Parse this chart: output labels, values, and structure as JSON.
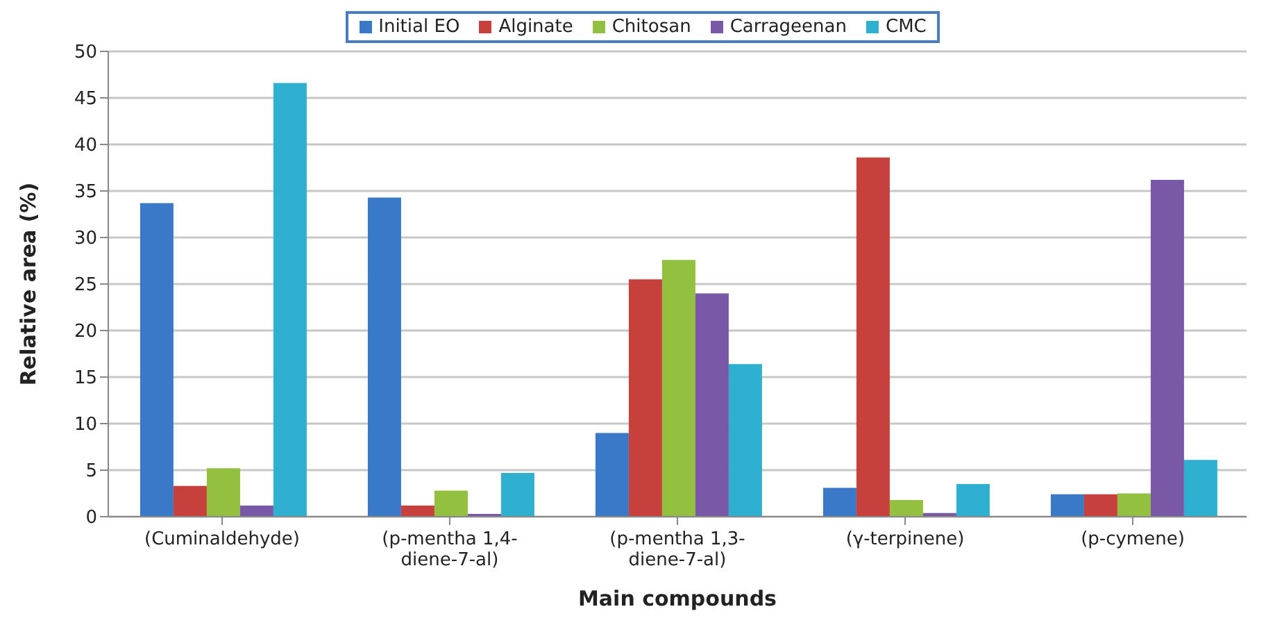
{
  "chart_data": {
    "type": "bar",
    "xlabel": "Main compounds",
    "ylabel": "Relative area (%)",
    "categories": [
      "(Cuminaldehyde)",
      "(p-mentha 1,4-diene-7-al)",
      "(p-mentha 1,3-diene-7-al)",
      "(γ-terpinene)",
      "(p-cymene)"
    ],
    "series": [
      {
        "name": "Initial EO",
        "color": "#3a78c8",
        "values": [
          33.7,
          34.3,
          9.0,
          3.1,
          2.4
        ]
      },
      {
        "name": "Alginate",
        "color": "#c8403c",
        "values": [
          3.3,
          1.2,
          25.5,
          38.6,
          2.4
        ]
      },
      {
        "name": "Chitosan",
        "color": "#94c040",
        "values": [
          5.2,
          2.8,
          27.6,
          1.8,
          2.5
        ]
      },
      {
        "name": "Carrageenan",
        "color": "#7a58a8",
        "values": [
          1.2,
          0.3,
          24.0,
          0.4,
          36.2
        ]
      },
      {
        "name": "CMC",
        "color": "#30b0d0",
        "values": [
          46.6,
          4.7,
          16.4,
          3.5,
          6.1
        ]
      }
    ],
    "ylim": [
      0,
      50
    ],
    "yticks": [
      0,
      5,
      10,
      15,
      20,
      25,
      30,
      35,
      40,
      45,
      50
    ],
    "grid": "y",
    "legend": "top"
  }
}
